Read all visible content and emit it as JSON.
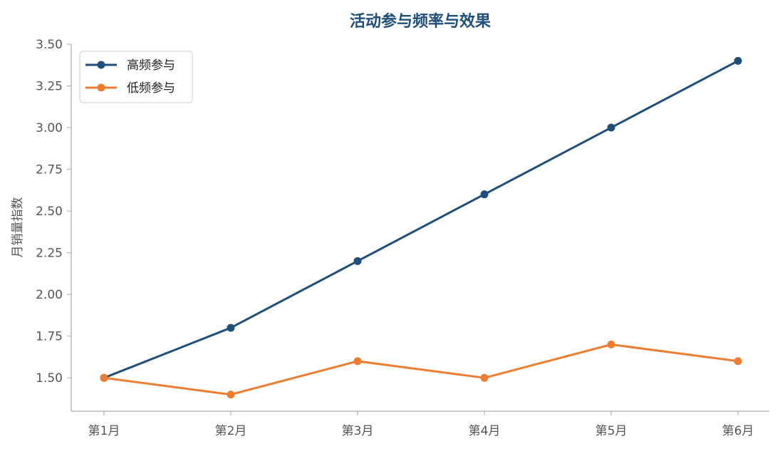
{
  "chart_data": {
    "type": "line",
    "title": "活动参与频率与效果",
    "xlabel": "",
    "ylabel": "月销量指数",
    "categories": [
      "第1月",
      "第2月",
      "第3月",
      "第4月",
      "第5月",
      "第6月"
    ],
    "yticks": [
      "1.50",
      "1.75",
      "2.00",
      "2.25",
      "2.50",
      "2.75",
      "3.00",
      "3.25",
      "3.50"
    ],
    "ylim": [
      1.3,
      3.5
    ],
    "grid": false,
    "legend_position": "top-left",
    "series": [
      {
        "name": "高频参与",
        "color": "#1f4e79",
        "values": [
          1.5,
          1.8,
          2.2,
          2.6,
          3.0,
          3.4
        ]
      },
      {
        "name": "低频参与",
        "color": "#ed7d31",
        "values": [
          1.5,
          1.4,
          1.6,
          1.5,
          1.7,
          1.6
        ]
      }
    ]
  }
}
